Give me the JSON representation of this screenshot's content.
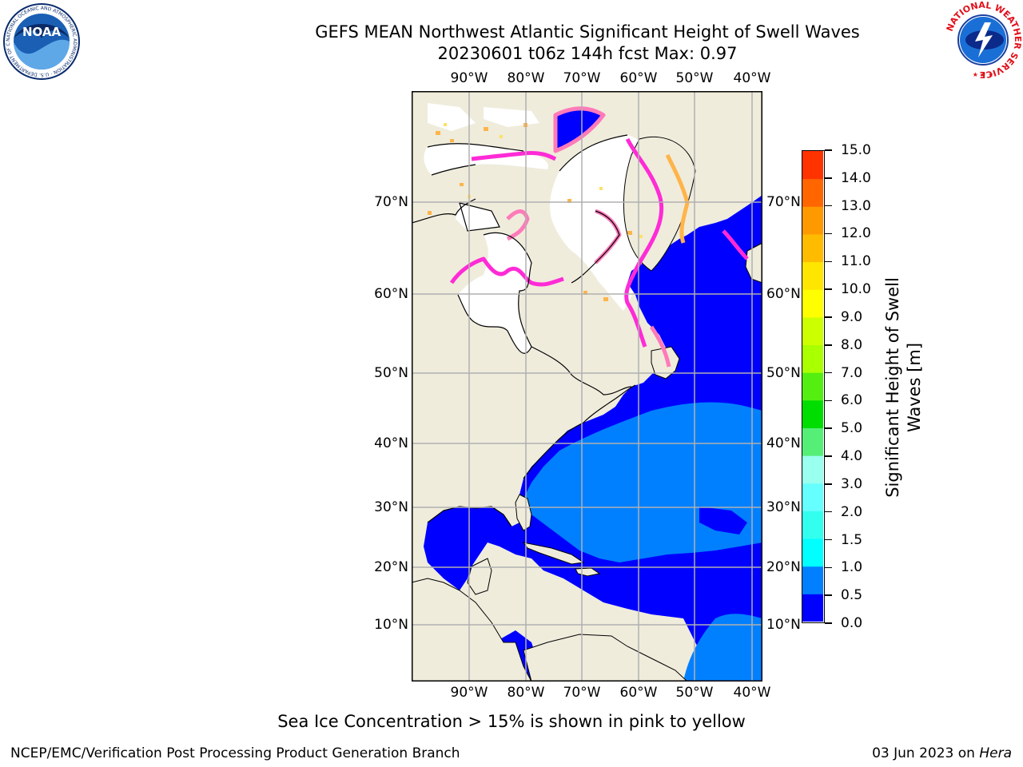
{
  "title": {
    "line1": "GEFS MEAN Northwest Atlantic Significant Height of Swell Waves",
    "line2": "20230601 t06z 144h fcst   Max: 0.97"
  },
  "logos": {
    "left": {
      "text": "NOAA",
      "ring_text": "NATIONAL OCEANIC AND ATMOSPHERIC ADMINISTRATION · U.S. DEPARTMENT OF COMMERCE"
    },
    "right": {
      "ring_text": "NATIONAL WEATHER SERVICE"
    }
  },
  "map": {
    "lon_labels": [
      "90°W",
      "80°W",
      "70°W",
      "60°W",
      "50°W",
      "40°W"
    ],
    "lat_labels": [
      "70°N",
      "60°N",
      "50°N",
      "40°N",
      "30°N",
      "20°N",
      "10°N"
    ],
    "colors": {
      "land": "#efecdc",
      "ice_free_white": "#ffffff",
      "swell_low": "#0000ff",
      "swell_mid": "#0080ff",
      "grid": "#b0b0b0",
      "ice": [
        "#ff2bd6",
        "#ff7ab8",
        "#ffb44a",
        "#ffe066"
      ]
    }
  },
  "colorbar": {
    "title": "Significant Height of Swell Waves [m]",
    "title_lines": [
      "Significant Height of Swell",
      "Waves [m]"
    ],
    "labels": [
      "0.0",
      "0.5",
      "1.0",
      "1.5",
      "2.0",
      "3.0",
      "4.0",
      "5.0",
      "6.0",
      "7.0",
      "8.0",
      "9.0",
      "10.0",
      "11.0",
      "12.0",
      "13.0",
      "14.0",
      "15.0"
    ],
    "colors": [
      "#0000ff",
      "#0080ff",
      "#00ffff",
      "#33ffee",
      "#66ffff",
      "#99ffee",
      "#55ee77",
      "#00dd00",
      "#55ee11",
      "#aaff00",
      "#ccff00",
      "#ffff00",
      "#ffe600",
      "#ffbb00",
      "#ff9900",
      "#ff6600",
      "#ff3300",
      "#ff0000"
    ]
  },
  "caption": "Sea Ice Concentration > 15% is shown in pink to yellow",
  "footer": {
    "left": "NCEP/EMC/Verification Post Processing Product Generation Branch",
    "right_prefix": "03 Jun 2023 on ",
    "right_italic": "Hera"
  }
}
